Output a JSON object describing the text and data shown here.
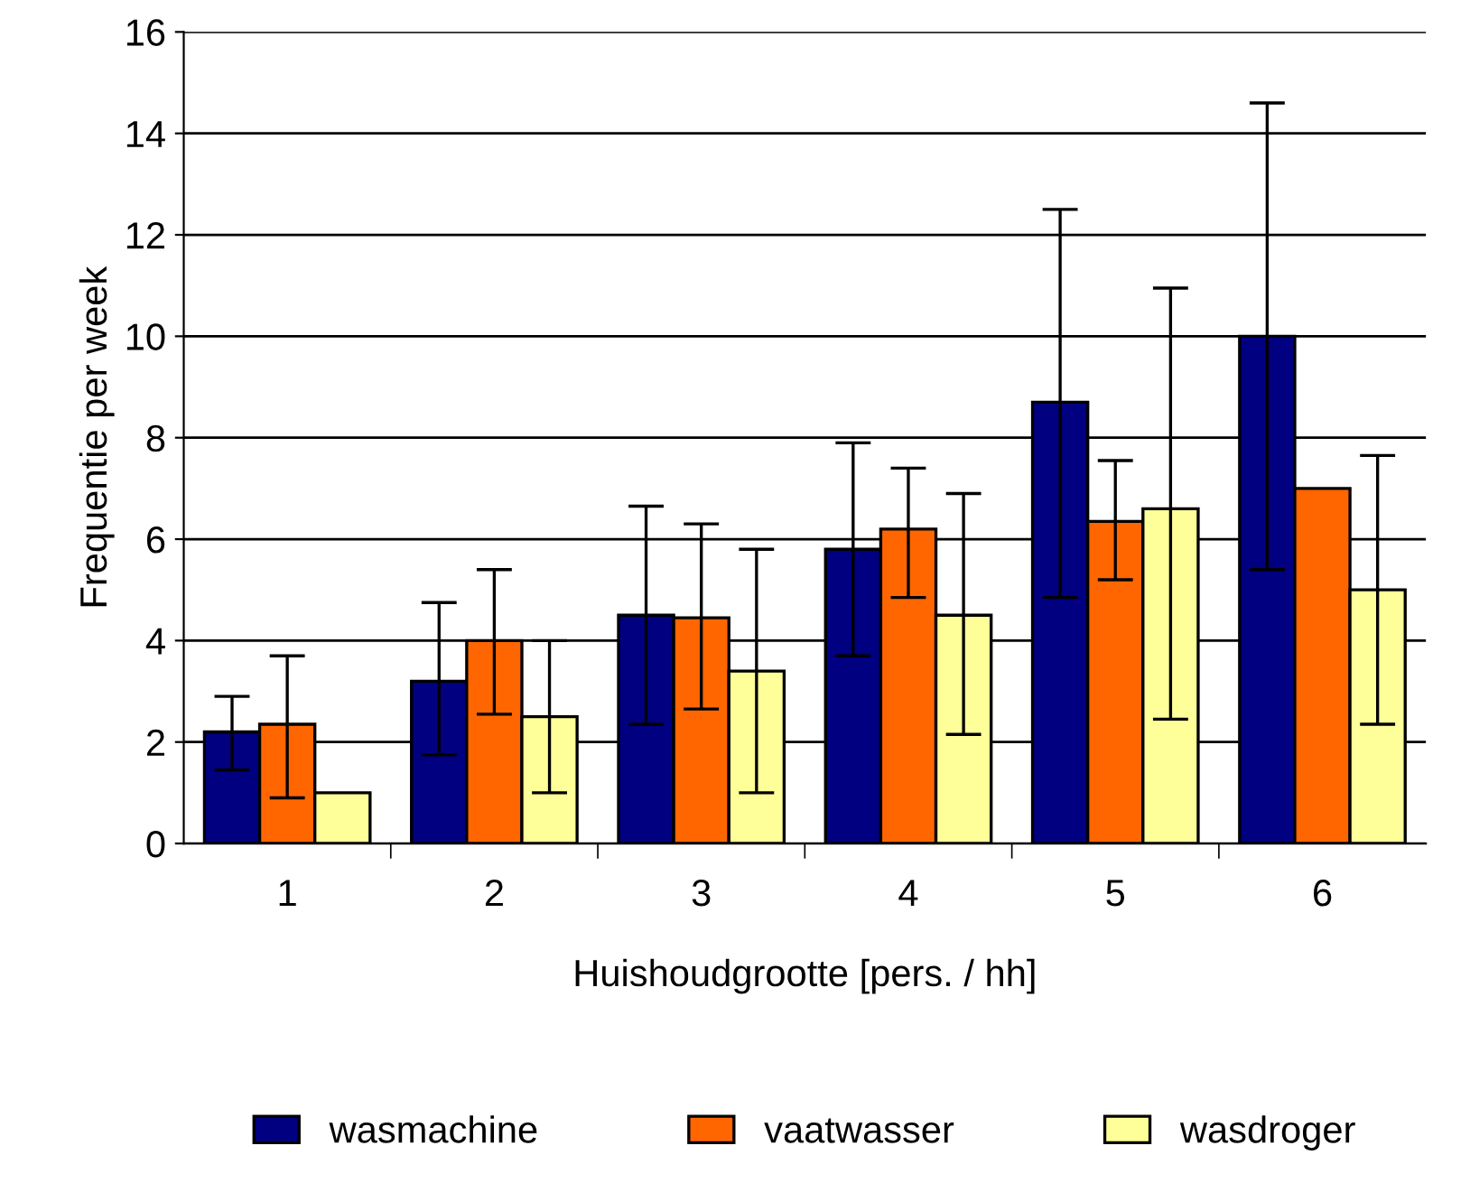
{
  "chart_data": {
    "type": "bar",
    "xlabel": "Huishoudgrootte [pers. / hh]",
    "ylabel": "Frequentie per week",
    "categories": [
      "1",
      "2",
      "3",
      "4",
      "5",
      "6"
    ],
    "series": [
      {
        "name": "wasmachine",
        "color": "#000080",
        "values": [
          2.2,
          3.2,
          4.5,
          5.8,
          8.7,
          10.0
        ],
        "errors": [
          [
            1.45,
            2.9
          ],
          [
            1.75,
            4.75
          ],
          [
            2.35,
            6.65
          ],
          [
            3.7,
            7.9
          ],
          [
            4.85,
            12.5
          ],
          [
            5.4,
            14.6
          ]
        ]
      },
      {
        "name": "vaatwasser",
        "color": "#ff6600",
        "values": [
          2.35,
          4.0,
          4.45,
          6.2,
          6.35,
          7.0
        ],
        "errors": [
          [
            0.9,
            3.7
          ],
          [
            2.55,
            5.4
          ],
          [
            2.65,
            6.3
          ],
          [
            4.85,
            7.4
          ],
          [
            5.2,
            7.55
          ],
          null
        ]
      },
      {
        "name": "wasdroger",
        "color": "#ffff99",
        "values": [
          1.0,
          2.5,
          3.4,
          4.5,
          6.6,
          5.0
        ],
        "errors": [
          null,
          [
            1.0,
            4.0
          ],
          [
            1.0,
            5.8
          ],
          [
            2.15,
            6.9
          ],
          [
            2.45,
            10.95
          ],
          [
            2.35,
            7.65
          ]
        ]
      }
    ],
    "ylim": [
      0,
      16
    ],
    "yticks": [
      0,
      2,
      4,
      6,
      8,
      10,
      12,
      14,
      16
    ],
    "grid": "y",
    "legend": "bottom"
  }
}
